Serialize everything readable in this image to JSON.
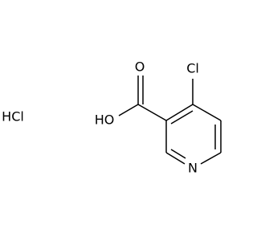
{
  "salt": {
    "label": "HCl"
  },
  "atoms": {
    "carbonyl_oxygen": "O",
    "hydroxyl": "HO",
    "chlorine": "Cl",
    "nitrogen": "N"
  }
}
